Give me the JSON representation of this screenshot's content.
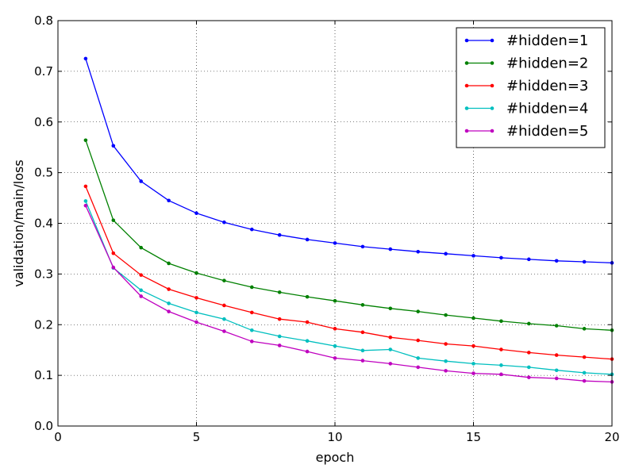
{
  "chart_data": {
    "type": "line",
    "xlabel": "epoch",
    "ylabel": "validation/main/loss",
    "xlim": [
      0,
      20
    ],
    "ylim": [
      0.0,
      0.8
    ],
    "xticks": [
      0,
      5,
      10,
      15,
      20
    ],
    "yticks": [
      0.0,
      0.1,
      0.2,
      0.3,
      0.4,
      0.5,
      0.6,
      0.7,
      0.8
    ],
    "grid": true,
    "legend_position": "top-right",
    "x": [
      1,
      2,
      3,
      4,
      5,
      6,
      7,
      8,
      9,
      10,
      11,
      12,
      13,
      14,
      15,
      16,
      17,
      18,
      19,
      20
    ],
    "series": [
      {
        "name": "#hidden=1",
        "color": "#0000ff",
        "values": [
          0.725,
          0.553,
          0.483,
          0.445,
          0.42,
          0.402,
          0.388,
          0.377,
          0.368,
          0.361,
          0.354,
          0.349,
          0.344,
          0.34,
          0.336,
          0.332,
          0.329,
          0.326,
          0.324,
          0.322
        ]
      },
      {
        "name": "#hidden=2",
        "color": "#008000",
        "values": [
          0.564,
          0.406,
          0.352,
          0.321,
          0.302,
          0.287,
          0.274,
          0.264,
          0.255,
          0.247,
          0.239,
          0.232,
          0.226,
          0.219,
          0.213,
          0.207,
          0.202,
          0.198,
          0.192,
          0.189
        ]
      },
      {
        "name": "#hidden=3",
        "color": "#ff0000",
        "values": [
          0.473,
          0.341,
          0.298,
          0.27,
          0.253,
          0.238,
          0.224,
          0.211,
          0.205,
          0.192,
          0.185,
          0.175,
          0.169,
          0.162,
          0.158,
          0.151,
          0.145,
          0.14,
          0.136,
          0.132
        ]
      },
      {
        "name": "#hidden=4",
        "color": "#00bfbf",
        "values": [
          0.444,
          0.312,
          0.268,
          0.242,
          0.224,
          0.211,
          0.189,
          0.177,
          0.168,
          0.158,
          0.149,
          0.151,
          0.134,
          0.128,
          0.123,
          0.12,
          0.116,
          0.11,
          0.105,
          0.102
        ]
      },
      {
        "name": "#hidden=5",
        "color": "#bf00bf",
        "values": [
          0.435,
          0.313,
          0.256,
          0.226,
          0.205,
          0.187,
          0.167,
          0.159,
          0.147,
          0.134,
          0.129,
          0.123,
          0.116,
          0.109,
          0.104,
          0.102,
          0.096,
          0.094,
          0.089,
          0.087
        ]
      }
    ]
  }
}
